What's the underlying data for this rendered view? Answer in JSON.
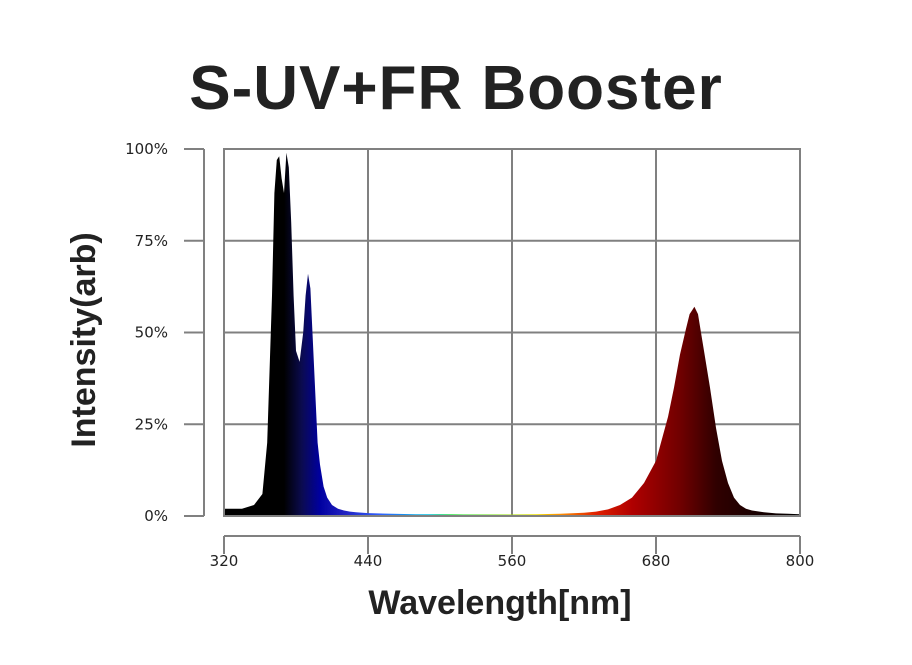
{
  "chart_data": {
    "type": "area",
    "title": "S-UV+FR Booster",
    "xlabel": "Wavelength[nm]",
    "ylabel": "Intensity(arb)",
    "xlim": [
      320,
      800
    ],
    "ylim": [
      0,
      100
    ],
    "x_ticks": [
      320,
      440,
      560,
      680,
      800
    ],
    "y_ticks": [
      0,
      25,
      50,
      75,
      100
    ],
    "y_tick_labels": [
      "0%",
      "25%",
      "50%",
      "75%",
      "100%"
    ],
    "grid": true,
    "legend": "none",
    "series": [
      {
        "x": [
          320,
          335,
          345,
          352,
          356,
          360,
          362,
          364,
          366,
          368,
          370,
          372,
          374,
          376,
          378,
          380,
          383,
          386,
          388,
          390,
          392,
          394,
          396,
          398,
          400,
          403,
          406,
          410,
          415,
          420,
          425,
          430,
          440,
          460,
          480,
          500,
          520,
          540,
          560,
          580,
          600,
          620,
          630,
          640,
          650,
          660,
          670,
          680,
          690,
          695,
          700,
          705,
          708,
          710,
          712,
          715,
          718,
          720,
          725,
          730,
          735,
          740,
          745,
          750,
          755,
          760,
          770,
          780,
          790,
          800
        ],
        "y": [
          2,
          2,
          3,
          6,
          20,
          60,
          88,
          97,
          98,
          92,
          88,
          99,
          95,
          80,
          60,
          45,
          42,
          50,
          60,
          66,
          62,
          48,
          34,
          20,
          14,
          8,
          5,
          3,
          2,
          1.5,
          1.2,
          1,
          0.8,
          0.6,
          0.5,
          0.5,
          0.4,
          0.4,
          0.4,
          0.5,
          0.6,
          0.9,
          1.2,
          1.8,
          3,
          5,
          9,
          15,
          27,
          35,
          44,
          51,
          55,
          56,
          57,
          55,
          49,
          45,
          35,
          24,
          15,
          9,
          5,
          3,
          2,
          1.5,
          1,
          0.7,
          0.6,
          0.5
        ],
        "fill_colors": [
          {
            "nm": 320,
            "color": "#000000"
          },
          {
            "nm": 370,
            "color": "#000000"
          },
          {
            "nm": 385,
            "color": "#0b0b50"
          },
          {
            "nm": 400,
            "color": "#0000a0"
          },
          {
            "nm": 420,
            "color": "#2020c0"
          },
          {
            "nm": 450,
            "color": "#3060ff"
          },
          {
            "nm": 490,
            "color": "#00c0e0"
          },
          {
            "nm": 510,
            "color": "#00e020"
          },
          {
            "nm": 550,
            "color": "#80e000"
          },
          {
            "nm": 580,
            "color": "#f0e000"
          },
          {
            "nm": 600,
            "color": "#ff9000"
          },
          {
            "nm": 630,
            "color": "#e02000"
          },
          {
            "nm": 660,
            "color": "#b00000"
          },
          {
            "nm": 700,
            "color": "#700000"
          },
          {
            "nm": 730,
            "color": "#300000"
          },
          {
            "nm": 800,
            "color": "#000000"
          }
        ]
      }
    ]
  }
}
